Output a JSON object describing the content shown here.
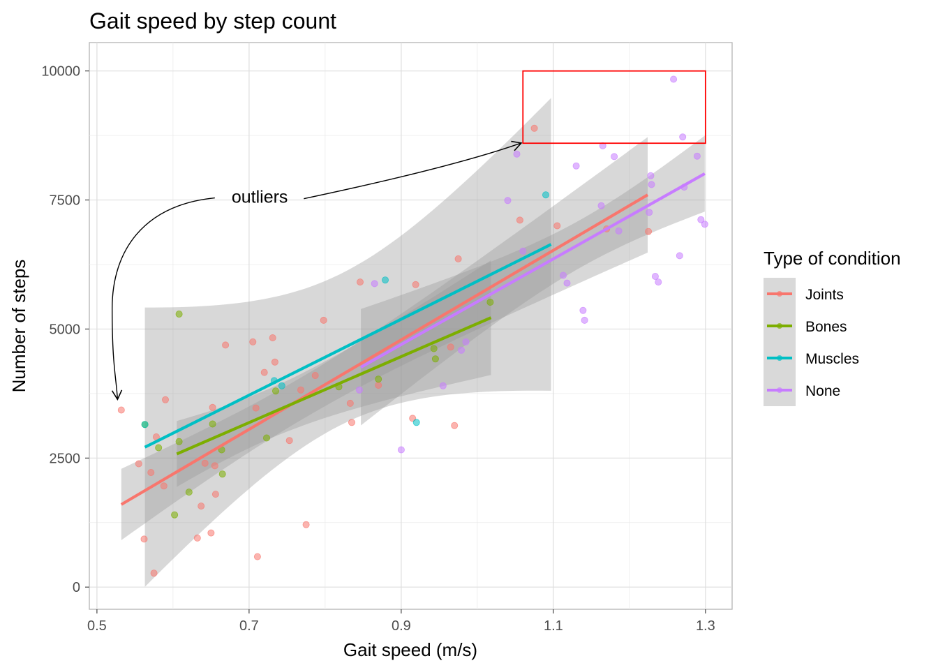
{
  "chart_data": {
    "type": "scatter",
    "title": "Gait speed by step count",
    "xlabel": "Gait speed (m/s)",
    "ylabel": "Number of steps",
    "xlim": [
      0.49,
      1.335
    ],
    "ylim": [
      -430,
      10550
    ],
    "x_ticks": [
      "0.5",
      "0.7",
      "0.9",
      "1.1",
      "1.3"
    ],
    "x_tick_values": [
      0.5,
      0.7,
      0.9,
      1.1,
      1.3
    ],
    "y_ticks": [
      "0",
      "2500",
      "5000",
      "7500",
      "10000"
    ],
    "y_tick_values": [
      0,
      2500,
      5000,
      7500,
      10000
    ],
    "grid": true,
    "legend": {
      "title": "Type of condition",
      "position": "right",
      "entries": [
        "Joints",
        "Bones",
        "Muscles",
        "None"
      ]
    },
    "series": [
      {
        "name": "Joints",
        "color": "#F8766D",
        "points": [
          [
            0.532,
            3430
          ],
          [
            0.555,
            2390
          ],
          [
            0.562,
            930
          ],
          [
            0.571,
            2220
          ],
          [
            0.575,
            270
          ],
          [
            0.578,
            2910
          ],
          [
            0.588,
            1960
          ],
          [
            0.59,
            3630
          ],
          [
            0.632,
            950
          ],
          [
            0.637,
            1570
          ],
          [
            0.642,
            2400
          ],
          [
            0.65,
            1050
          ],
          [
            0.652,
            3480
          ],
          [
            0.655,
            2350
          ],
          [
            0.656,
            1800
          ],
          [
            0.669,
            4690
          ],
          [
            0.705,
            4750
          ],
          [
            0.709,
            3470
          ],
          [
            0.711,
            590
          ],
          [
            0.72,
            4160
          ],
          [
            0.731,
            4830
          ],
          [
            0.734,
            4360
          ],
          [
            0.753,
            2840
          ],
          [
            0.768,
            3820
          ],
          [
            0.775,
            1210
          ],
          [
            0.787,
            4100
          ],
          [
            0.798,
            5170
          ],
          [
            0.833,
            3560
          ],
          [
            0.835,
            3190
          ],
          [
            0.846,
            5910
          ],
          [
            0.87,
            3910
          ],
          [
            0.915,
            3270
          ],
          [
            0.919,
            5860
          ],
          [
            0.965,
            4650
          ],
          [
            0.97,
            3130
          ],
          [
            0.975,
            6360
          ],
          [
            1.056,
            7110
          ],
          [
            1.075,
            8890
          ],
          [
            1.105,
            7000
          ],
          [
            1.17,
            6940
          ],
          [
            1.225,
            6890
          ]
        ],
        "fit": {
          "x": [
            0.532,
            1.224
          ],
          "y": [
            1600,
            7600
          ]
        }
      },
      {
        "name": "Bones",
        "color": "#7CAE00",
        "points": [
          [
            0.563,
            3150
          ],
          [
            0.581,
            2700
          ],
          [
            0.602,
            1400
          ],
          [
            0.608,
            5290
          ],
          [
            0.608,
            2820
          ],
          [
            0.621,
            1840
          ],
          [
            0.652,
            3160
          ],
          [
            0.664,
            2660
          ],
          [
            0.665,
            2190
          ],
          [
            0.723,
            2890
          ],
          [
            0.735,
            3800
          ],
          [
            0.818,
            3880
          ],
          [
            0.87,
            4030
          ],
          [
            0.943,
            4620
          ],
          [
            0.945,
            4420
          ],
          [
            1.017,
            5520
          ]
        ],
        "fit": {
          "x": [
            0.605,
            1.018
          ],
          "y": [
            2580,
            5220
          ]
        }
      },
      {
        "name": "Muscles",
        "color": "#00BFC4",
        "points": [
          [
            0.563,
            3150
          ],
          [
            0.733,
            4000
          ],
          [
            0.743,
            3900
          ],
          [
            0.879,
            5950
          ],
          [
            0.92,
            3190
          ],
          [
            1.09,
            7600
          ]
        ],
        "fit": {
          "x": [
            0.563,
            1.097
          ],
          "y": [
            2710,
            6640
          ]
        }
      },
      {
        "name": "None",
        "color": "#C77CFF",
        "points": [
          [
            0.845,
            3820
          ],
          [
            0.865,
            5880
          ],
          [
            0.9,
            2660
          ],
          [
            0.955,
            3900
          ],
          [
            0.979,
            4590
          ],
          [
            0.985,
            4750
          ],
          [
            1.04,
            7490
          ],
          [
            1.052,
            8390
          ],
          [
            1.06,
            6510
          ],
          [
            1.113,
            6040
          ],
          [
            1.118,
            5890
          ],
          [
            1.13,
            8160
          ],
          [
            1.139,
            5360
          ],
          [
            1.141,
            5170
          ],
          [
            1.163,
            7390
          ],
          [
            1.165,
            8550
          ],
          [
            1.18,
            8340
          ],
          [
            1.186,
            6900
          ],
          [
            1.226,
            7260
          ],
          [
            1.228,
            7970
          ],
          [
            1.229,
            7800
          ],
          [
            1.234,
            6020
          ],
          [
            1.238,
            5910
          ],
          [
            1.258,
            9840
          ],
          [
            1.266,
            6420
          ],
          [
            1.27,
            8720
          ],
          [
            1.272,
            7750
          ],
          [
            1.289,
            8350
          ],
          [
            1.294,
            7120
          ],
          [
            1.299,
            7030
          ]
        ],
        "fit": {
          "x": [
            0.847,
            1.299
          ],
          "y": [
            4260,
            8010
          ]
        }
      }
    ],
    "annotations": [
      {
        "type": "text",
        "text": "outliers"
      },
      {
        "type": "rect",
        "color": "#FF0000",
        "x_range": [
          1.06,
          1.3
        ],
        "y_range": [
          8600,
          10000
        ]
      }
    ]
  }
}
